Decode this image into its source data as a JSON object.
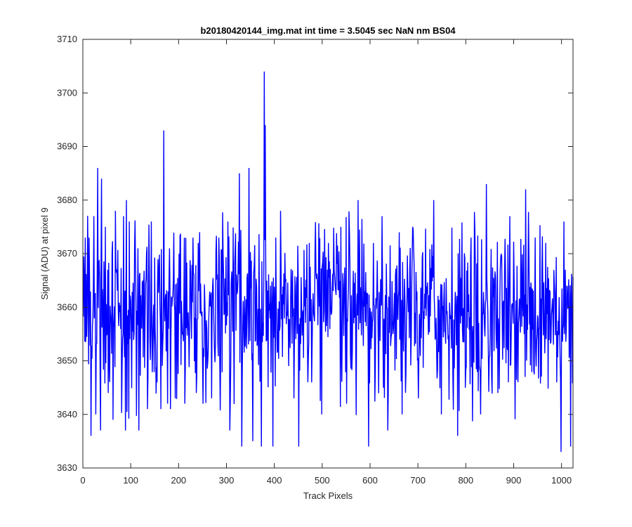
{
  "chart_data": {
    "type": "line",
    "title": "b20180420144_img.mat int time = 3.5045 sec  NaN nm BS04",
    "xlabel": "Track Pixels",
    "ylabel": "Signal (ADU) at pixel 9",
    "xlim": [
      0,
      1024
    ],
    "ylim": [
      3630,
      3710
    ],
    "xticks": [
      0,
      100,
      200,
      300,
      400,
      500,
      600,
      700,
      800,
      900,
      1000
    ],
    "yticks": [
      3630,
      3640,
      3650,
      3660,
      3670,
      3680,
      3690,
      3700,
      3710
    ],
    "grid": false,
    "legend": "none",
    "line_color": "#0000ff",
    "series_length": 1024,
    "series_mean": 3659,
    "series_std": 7.5,
    "series_peaks": [
      {
        "x": 4,
        "y": 3673
      },
      {
        "x": 12,
        "y": 3673
      },
      {
        "x": 16,
        "y": 3636
      },
      {
        "x": 22,
        "y": 3677
      },
      {
        "x": 26,
        "y": 3640
      },
      {
        "x": 30,
        "y": 3686
      },
      {
        "x": 36,
        "y": 3637
      },
      {
        "x": 38,
        "y": 3684
      },
      {
        "x": 46,
        "y": 3675
      },
      {
        "x": 52,
        "y": 3644
      },
      {
        "x": 62,
        "y": 3639
      },
      {
        "x": 67,
        "y": 3678
      },
      {
        "x": 84,
        "y": 3677
      },
      {
        "x": 88,
        "y": 3637
      },
      {
        "x": 90,
        "y": 3680
      },
      {
        "x": 96,
        "y": 3676
      },
      {
        "x": 114,
        "y": 3671
      },
      {
        "x": 116,
        "y": 3637
      },
      {
        "x": 132,
        "y": 3670
      },
      {
        "x": 134,
        "y": 3641
      },
      {
        "x": 142,
        "y": 3676
      },
      {
        "x": 156,
        "y": 3669
      },
      {
        "x": 162,
        "y": 3641
      },
      {
        "x": 168,
        "y": 3693
      },
      {
        "x": 176,
        "y": 3642
      },
      {
        "x": 180,
        "y": 3671
      },
      {
        "x": 182,
        "y": 3641
      },
      {
        "x": 200,
        "y": 3670
      },
      {
        "x": 212,
        "y": 3642
      },
      {
        "x": 236,
        "y": 3644
      },
      {
        "x": 240,
        "y": 3672
      },
      {
        "x": 250,
        "y": 3642
      },
      {
        "x": 268,
        "y": 3643
      },
      {
        "x": 292,
        "y": 3670
      },
      {
        "x": 302,
        "y": 3676
      },
      {
        "x": 306,
        "y": 3637
      },
      {
        "x": 326,
        "y": 3685
      },
      {
        "x": 331,
        "y": 3634
      },
      {
        "x": 346,
        "y": 3686
      },
      {
        "x": 354,
        "y": 3635
      },
      {
        "x": 372,
        "y": 3634
      },
      {
        "x": 378,
        "y": 3704
      },
      {
        "x": 380,
        "y": 3694
      },
      {
        "x": 396,
        "y": 3634
      },
      {
        "x": 402,
        "y": 3673
      },
      {
        "x": 412,
        "y": 3678
      },
      {
        "x": 440,
        "y": 3643
      },
      {
        "x": 450,
        "y": 3634
      },
      {
        "x": 472,
        "y": 3672
      },
      {
        "x": 498,
        "y": 3640
      },
      {
        "x": 512,
        "y": 3672
      },
      {
        "x": 538,
        "y": 3675
      },
      {
        "x": 550,
        "y": 3642
      },
      {
        "x": 574,
        "y": 3680
      },
      {
        "x": 596,
        "y": 3634
      },
      {
        "x": 606,
        "y": 3672
      },
      {
        "x": 624,
        "y": 3677
      },
      {
        "x": 636,
        "y": 3637
      },
      {
        "x": 660,
        "y": 3674
      },
      {
        "x": 666,
        "y": 3640
      },
      {
        "x": 688,
        "y": 3675
      },
      {
        "x": 700,
        "y": 3643
      },
      {
        "x": 732,
        "y": 3680
      },
      {
        "x": 748,
        "y": 3640
      },
      {
        "x": 782,
        "y": 3636
      },
      {
        "x": 810,
        "y": 3673
      },
      {
        "x": 830,
        "y": 3640
      },
      {
        "x": 842,
        "y": 3683
      },
      {
        "x": 866,
        "y": 3644
      },
      {
        "x": 888,
        "y": 3646
      },
      {
        "x": 924,
        "y": 3682
      },
      {
        "x": 944,
        "y": 3673
      },
      {
        "x": 966,
        "y": 3672
      },
      {
        "x": 998,
        "y": 3633
      },
      {
        "x": 1004,
        "y": 3676
      },
      {
        "x": 1018,
        "y": 3634
      }
    ]
  }
}
